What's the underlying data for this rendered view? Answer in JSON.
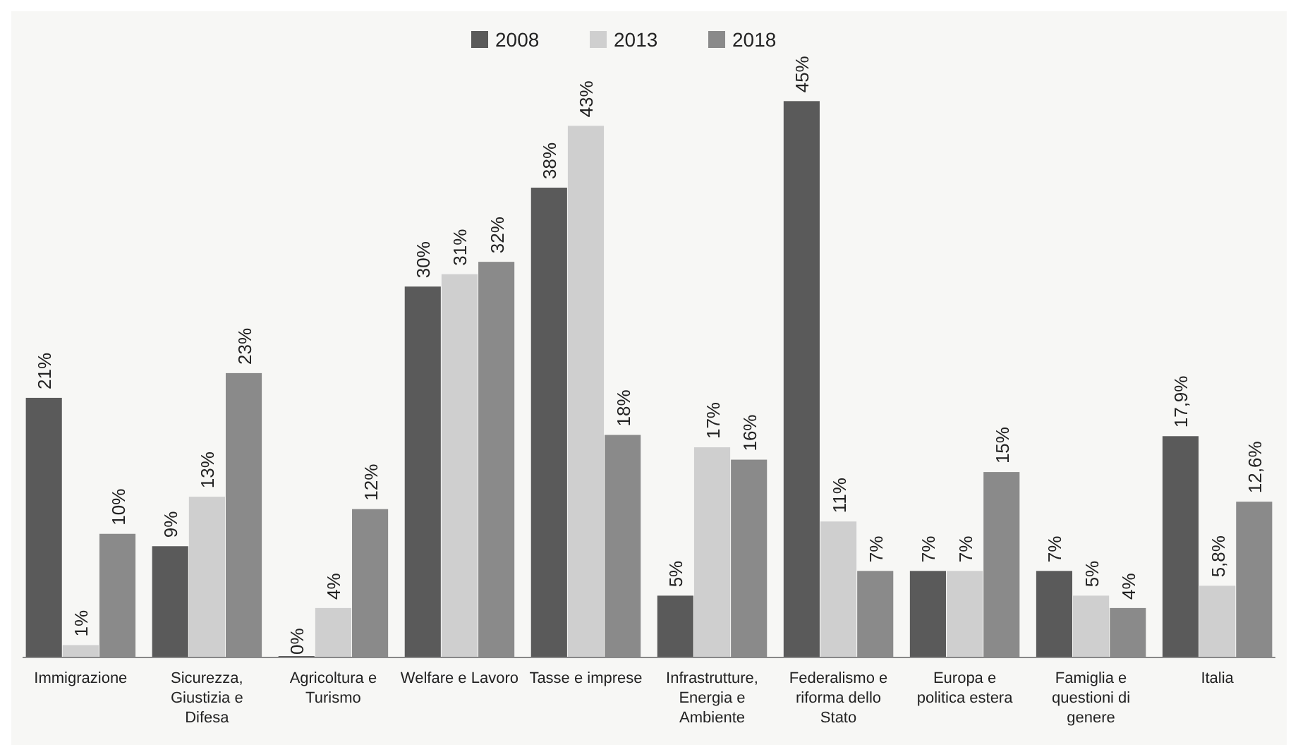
{
  "chart_data": {
    "type": "bar",
    "categories": [
      "Immigrazione",
      "Sicurezza, Giustizia e Difesa",
      "Agricoltura e Turismo",
      "Welfare e Lavoro",
      "Tasse e imprese",
      "Infrastrutture, Energia e Ambiente",
      "Federalismo e riforma dello Stato",
      "Europa e politica estera",
      "Famiglia e questioni di genere",
      "Italia"
    ],
    "series": [
      {
        "name": "2008",
        "color": "#5a5a5a",
        "values": [
          21,
          9,
          0,
          30,
          38,
          5,
          45,
          7,
          7,
          17.9
        ],
        "value_labels": [
          "21%",
          "9%",
          "0%",
          "30%",
          "38%",
          "5%",
          "45%",
          "7%",
          "7%",
          "17,9%"
        ]
      },
      {
        "name": "2013",
        "color": "#cfcfcf",
        "values": [
          1,
          13,
          4,
          31,
          43,
          17,
          11,
          7,
          5,
          5.8
        ],
        "value_labels": [
          "1%",
          "13%",
          "4%",
          "31%",
          "43%",
          "17%",
          "11%",
          "7%",
          "5%",
          "5,8%"
        ]
      },
      {
        "name": "2018",
        "color": "#8a8a8a",
        "values": [
          10,
          23,
          12,
          32,
          18,
          16,
          7,
          15,
          4,
          12.6
        ],
        "value_labels": [
          "10%",
          "23%",
          "12%",
          "32%",
          "18%",
          "16%",
          "7%",
          "15%",
          "4%",
          "12,6%"
        ]
      }
    ],
    "legend": "top"
  }
}
